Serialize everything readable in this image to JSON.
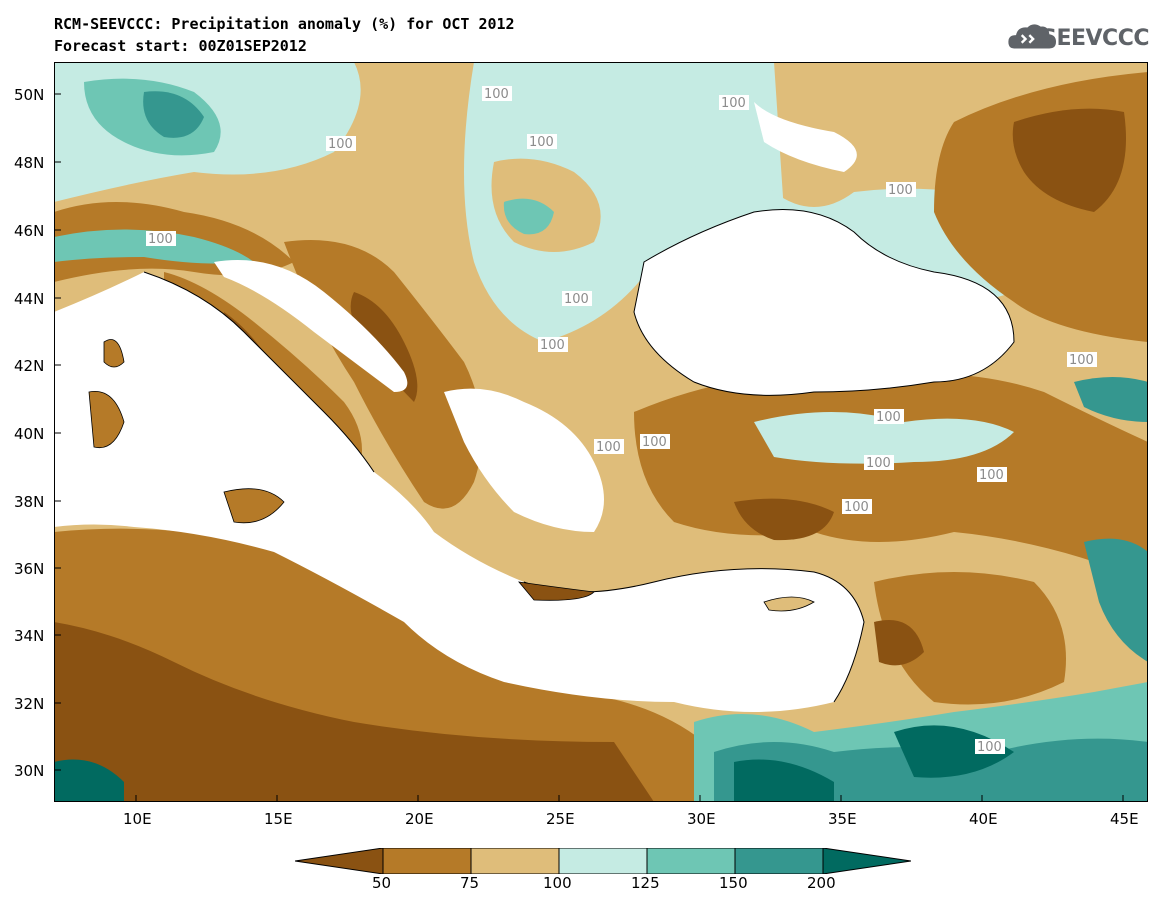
{
  "title": {
    "line1": "RCM-SEEVCCC: Precipitation anomaly (%) for OCT 2012",
    "line2": "Forecast start: 00Z01SEP2012"
  },
  "logo": {
    "text": "SEEVCCC",
    "icon": "cloud-icon"
  },
  "map": {
    "lon_labels": [
      "10E",
      "15E",
      "20E",
      "25E",
      "30E",
      "35E",
      "40E",
      "45E"
    ],
    "lat_labels": [
      "50N",
      "48N",
      "46N",
      "44N",
      "42N",
      "40N",
      "38N",
      "36N",
      "34N",
      "32N",
      "30N"
    ],
    "contour_label": "100",
    "colors": {
      "lt50": "#8a5212",
      "50_75": "#b57a28",
      "75_100": "#dfbd7a",
      "100_125": "#c5ebe3",
      "125_150": "#6ec6b4",
      "150_200": "#35978f",
      "gt200": "#016a60",
      "sea": "#ffffff"
    }
  },
  "colorbar": {
    "labels": [
      "50",
      "75",
      "100",
      "125",
      "150",
      "200"
    ],
    "colors": [
      "#8a5212",
      "#b57a28",
      "#dfbd7a",
      "#c5ebe3",
      "#6ec6b4",
      "#35978f",
      "#016a60"
    ]
  }
}
